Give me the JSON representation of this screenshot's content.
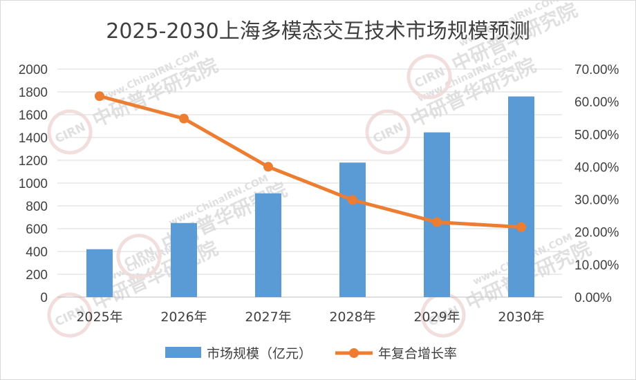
{
  "watermark": {
    "logo": "CIRN",
    "text": "中研普华研究院",
    "url": "www.ChinaIRN.COM"
  },
  "chart_data": {
    "type": "bar",
    "title": "2025-2030上海多模态交互技术市场规模预测",
    "categories": [
      "2025年",
      "2026年",
      "2027年",
      "2028年",
      "2029年",
      "2030年"
    ],
    "series": [
      {
        "name": "市场规模（亿元）",
        "type": "bar",
        "axis": "left",
        "color": "#5b9bd5",
        "values": [
          420,
          650,
          910,
          1180,
          1445,
          1760
        ]
      },
      {
        "name": "年复合增长率",
        "type": "line",
        "axis": "right",
        "color": "#ed7d31",
        "values": [
          0.617,
          0.548,
          0.4,
          0.298,
          0.23,
          0.215
        ]
      }
    ],
    "y_left": {
      "min": 0,
      "max": 2000,
      "step": 200,
      "ticks": [
        "0",
        "200",
        "400",
        "600",
        "800",
        "1000",
        "1200",
        "1400",
        "1600",
        "1800",
        "2000"
      ]
    },
    "y_right": {
      "min": 0,
      "max": 0.7,
      "step": 0.1,
      "ticks": [
        "0.00%",
        "10.00%",
        "20.00%",
        "30.00%",
        "40.00%",
        "50.00%",
        "60.00%",
        "70.00%"
      ]
    },
    "grid": true,
    "legend": "bottom"
  }
}
